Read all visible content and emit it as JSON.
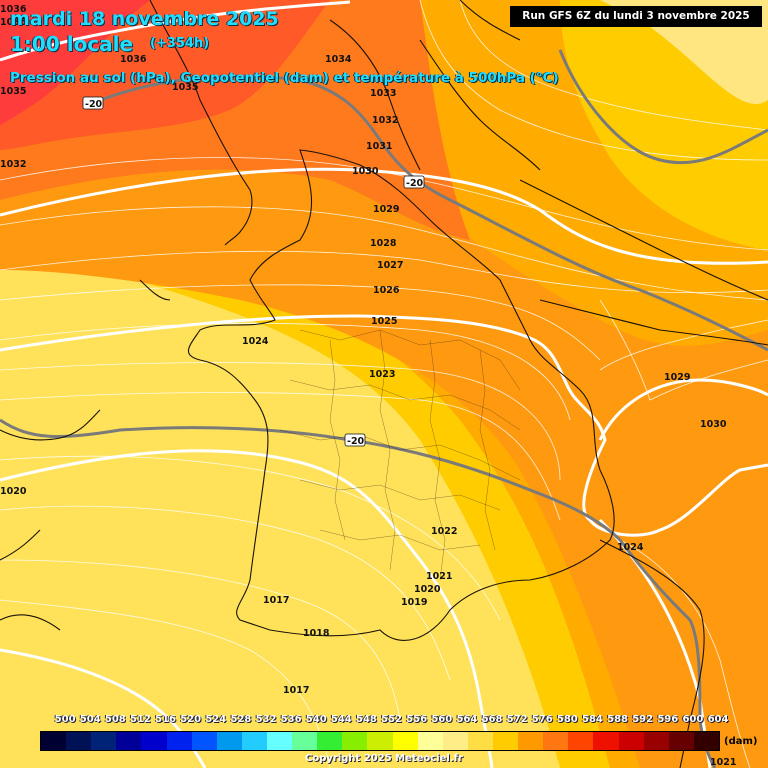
{
  "header": {
    "date": "mardi 18 novembre 2025",
    "time": "1:00 locale",
    "lead": "(+354h)",
    "subtitle": "Pression au sol (hPa), Geopotentiel (dam) et température à 500hPa (°C)",
    "run": "Run GFS 6Z du lundi 3 novembre 2025"
  },
  "isobar_labels": [
    "1036",
    "1035",
    "1034",
    "1033",
    "1032",
    "1031",
    "1030",
    "1029",
    "1028",
    "1027",
    "1026",
    "1025",
    "1024",
    "1023",
    "1022",
    "1021",
    "1020",
    "1019",
    "1018",
    "1017",
    "1029",
    "1030",
    "1024",
    "1032",
    "1036",
    "1035",
    "1020",
    "1021",
    "1017",
    "1036",
    "1030"
  ],
  "isotherm_labels": [
    "-20",
    "-20",
    "-20"
  ],
  "legend": {
    "values": [
      "500",
      "504",
      "508",
      "512",
      "516",
      "520",
      "524",
      "528",
      "532",
      "536",
      "540",
      "544",
      "548",
      "552",
      "556",
      "560",
      "564",
      "568",
      "572",
      "576",
      "580",
      "584",
      "588",
      "592",
      "596",
      "600",
      "604"
    ],
    "colors": [
      "#000033",
      "#001155",
      "#002277",
      "#000099",
      "#0000cc",
      "#0022ee",
      "#0055ff",
      "#0099ee",
      "#22ccff",
      "#66ffff",
      "#66ff99",
      "#33ee33",
      "#88ee00",
      "#ccee00",
      "#ffff00",
      "#ffff99",
      "#ffee88",
      "#ffdd44",
      "#ffcc00",
      "#ff9900",
      "#ff7711",
      "#ff4400",
      "#ee1100",
      "#cc0000",
      "#990000",
      "#660000",
      "#330000"
    ],
    "unit": "(dam)"
  },
  "copyright": "Copyright 2025 Meteociel.fr"
}
